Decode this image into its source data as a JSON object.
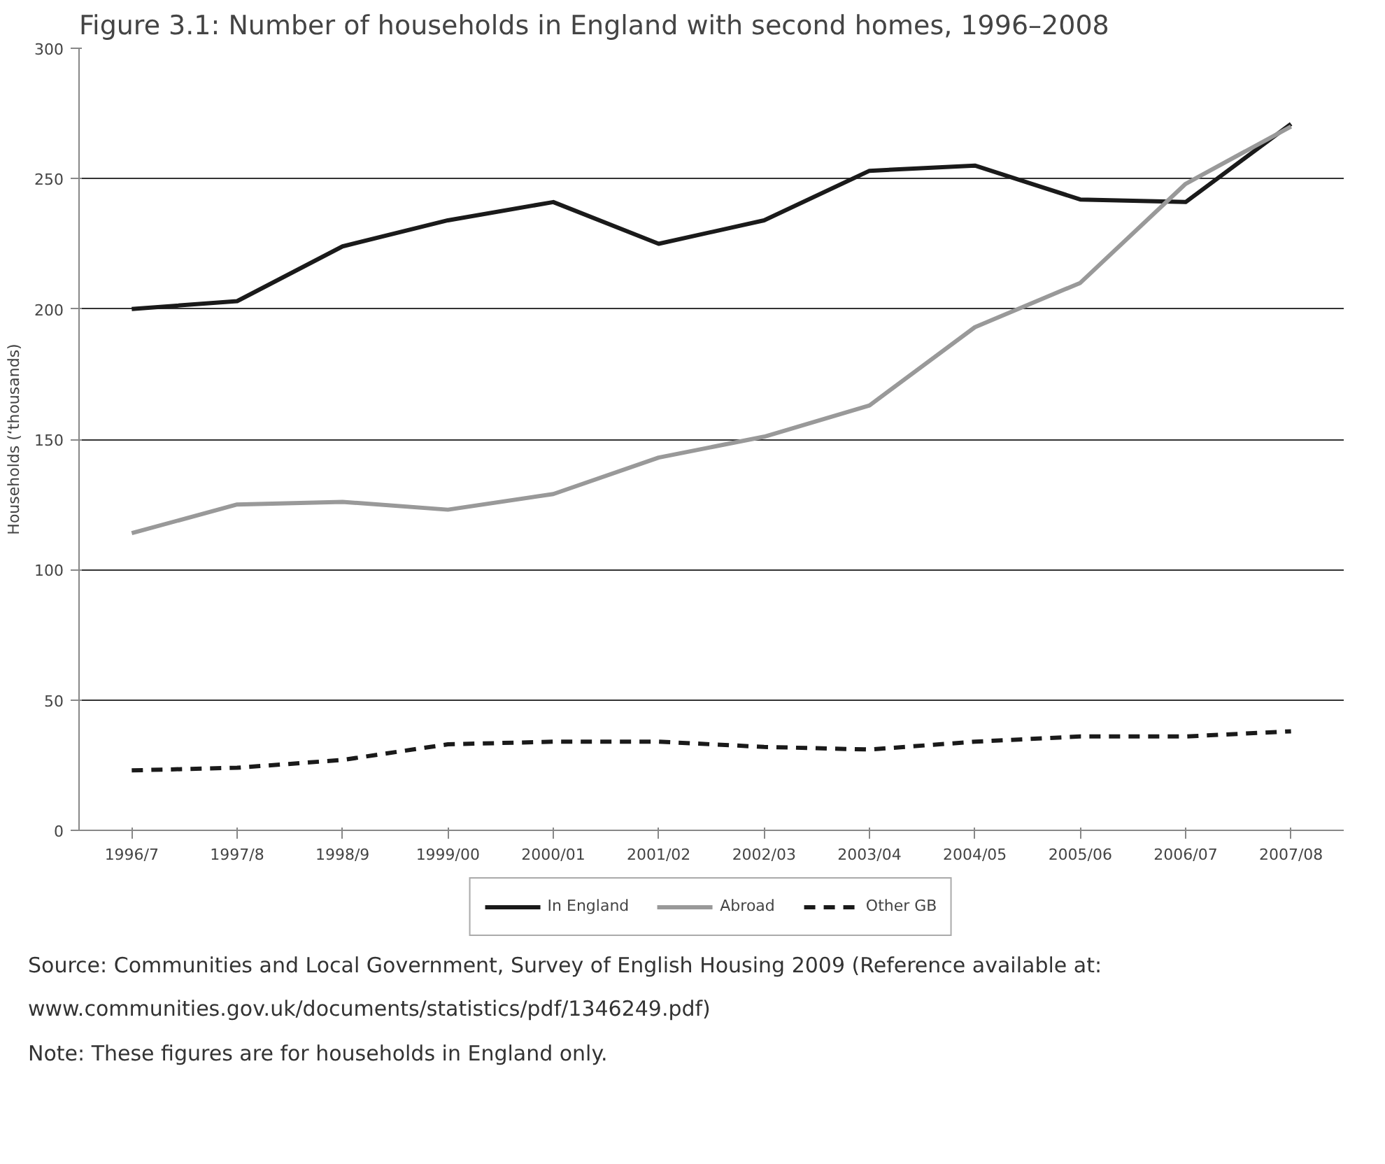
{
  "chart_data": {
    "type": "line",
    "title": "Figure 3.1: Number of households in England with second homes, 1996–2008",
    "ylabel": "Households (‘thousands)",
    "categories": [
      "1996/7",
      "1997/8",
      "1998/9",
      "1999/00",
      "2000/01",
      "2001/02",
      "2002/03",
      "2003/04",
      "2004/05",
      "2005/06",
      "2006/07",
      "2007/08"
    ],
    "series": [
      {
        "name": "In England",
        "color": "#1a1a1a",
        "line_style": "solid",
        "values": [
          200,
          203,
          224,
          234,
          241,
          225,
          234,
          253,
          255,
          242,
          241,
          271
        ]
      },
      {
        "name": "Abroad",
        "color": "#999999",
        "line_style": "solid",
        "values": [
          114,
          125,
          126,
          123,
          129,
          143,
          151,
          163,
          193,
          210,
          248,
          270
        ]
      },
      {
        "name": "Other GB",
        "color": "#1a1a1a",
        "line_style": "dashed",
        "values": [
          23,
          24,
          27,
          33,
          34,
          34,
          32,
          31,
          34,
          36,
          36,
          38
        ]
      }
    ],
    "ylim": [
      0,
      300
    ],
    "yticks": [
      0,
      50,
      100,
      150,
      200,
      250,
      300
    ],
    "grid": "y",
    "legend": "bottom",
    "marker": "none",
    "annotations": [
      "Source: Communities and Local Government, Survey of English Housing 2009 (Reference available at:",
      "www.communities.gov.uk/documents/statistics/pdf/1346249.pdf)",
      "Note: These figures are for households in England only."
    ]
  }
}
